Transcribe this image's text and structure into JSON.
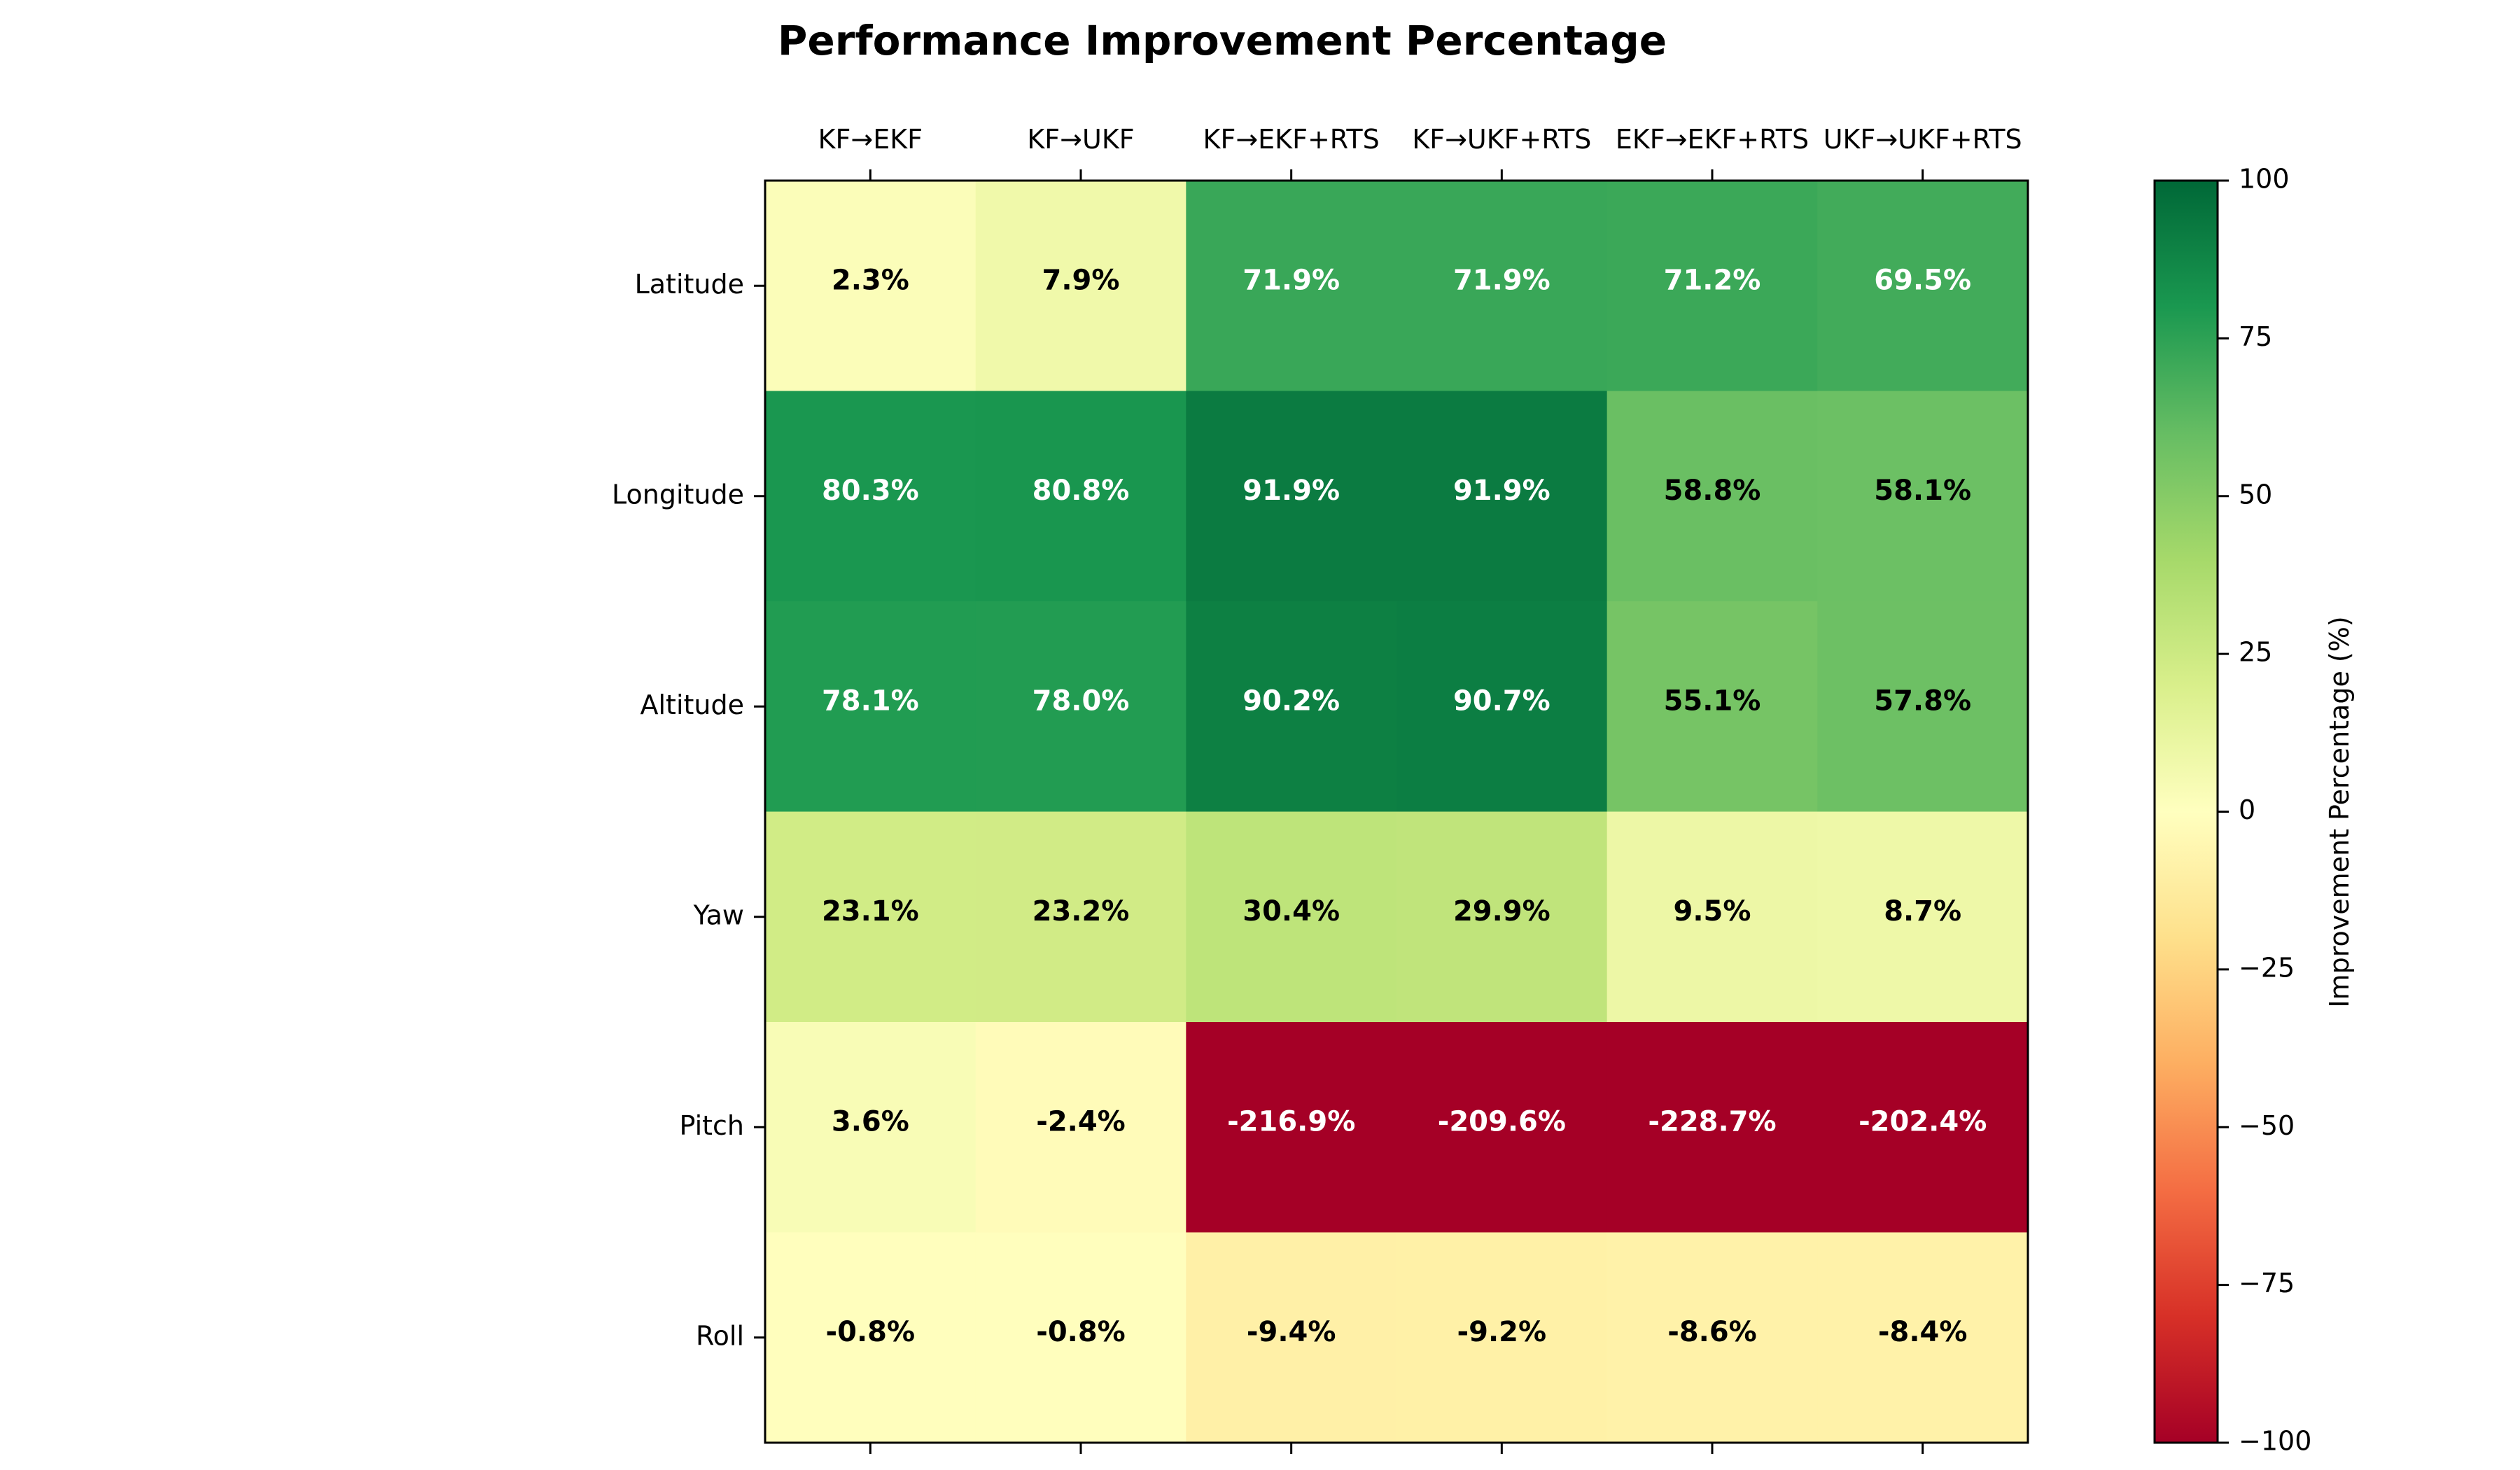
{
  "chart_data": {
    "type": "heatmap",
    "title": "Performance Improvement Percentage",
    "columns": [
      "KF→EKF",
      "KF→UKF",
      "KF→EKF+RTS",
      "KF→UKF+RTS",
      "EKF→EKF+RTS",
      "UKF→UKF+RTS"
    ],
    "rows": [
      "Latitude",
      "Longitude",
      "Altitude",
      "Yaw",
      "Pitch",
      "Roll"
    ],
    "values": [
      [
        2.3,
        7.9,
        71.9,
        71.9,
        71.2,
        69.5
      ],
      [
        80.3,
        80.8,
        91.9,
        91.9,
        58.8,
        58.1
      ],
      [
        78.1,
        78.0,
        90.2,
        90.7,
        55.1,
        57.8
      ],
      [
        23.1,
        23.2,
        30.4,
        29.9,
        9.5,
        8.7
      ],
      [
        3.6,
        -2.4,
        -216.9,
        -209.6,
        -228.7,
        -202.4
      ],
      [
        -0.8,
        -0.8,
        -9.4,
        -9.2,
        -8.6,
        -8.4
      ]
    ],
    "cell_labels": [
      [
        "2.3%",
        "7.9%",
        "71.9%",
        "71.9%",
        "71.2%",
        "69.5%"
      ],
      [
        "80.3%",
        "80.8%",
        "91.9%",
        "91.9%",
        "58.8%",
        "58.1%"
      ],
      [
        "78.1%",
        "78.0%",
        "90.2%",
        "90.7%",
        "55.1%",
        "57.8%"
      ],
      [
        "23.1%",
        "23.2%",
        "30.4%",
        "29.9%",
        "9.5%",
        "8.7%"
      ],
      [
        "3.6%",
        "-2.4%",
        "-216.9%",
        "-209.6%",
        "-228.7%",
        "-202.4%"
      ],
      [
        "-0.8%",
        "-0.8%",
        "-9.4%",
        "-9.2%",
        "-8.6%",
        "-8.4%"
      ]
    ],
    "colorbar": {
      "label": "Improvement Percentage (%)",
      "range": [
        -100,
        100
      ],
      "ticks": [
        100,
        75,
        50,
        25,
        0,
        -25,
        -50,
        -75,
        -100
      ],
      "tick_labels": [
        "100",
        "75",
        "50",
        "25",
        "0",
        "−25",
        "−50",
        "−75",
        "−100"
      ],
      "colormap": "RdYlGn",
      "colormap_stops": [
        "#a50026",
        "#d73027",
        "#f46d43",
        "#fdae61",
        "#fee08b",
        "#ffffbf",
        "#d9ef8b",
        "#a6d96a",
        "#66bd63",
        "#1a9850",
        "#006837"
      ]
    },
    "x_tick_position": "top",
    "grid": false
  }
}
